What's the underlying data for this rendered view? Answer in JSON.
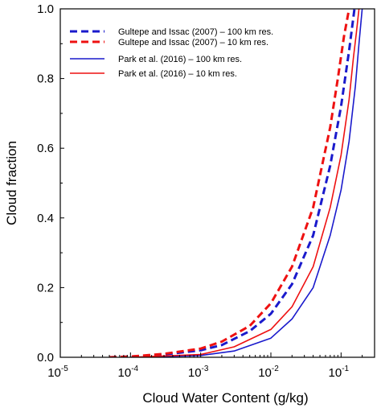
{
  "chart_data": {
    "type": "line",
    "title": "",
    "xlabel": "Cloud Water Content (g/kg)",
    "ylabel": "Cloud fraction",
    "xscale": "log",
    "xlim": [
      1e-05,
      0.3
    ],
    "ylim": [
      0.0,
      1.0
    ],
    "x_ticks": [
      {
        "value": 1e-05,
        "base": "10",
        "exp": "-5"
      },
      {
        "value": 0.0001,
        "base": "10",
        "exp": "-4"
      },
      {
        "value": 0.001,
        "base": "10",
        "exp": "-3"
      },
      {
        "value": 0.01,
        "base": "10",
        "exp": "-2"
      },
      {
        "value": 0.1,
        "base": "10",
        "exp": "-1"
      }
    ],
    "y_ticks": [
      "0.0",
      "0.2",
      "0.4",
      "0.6",
      "0.8",
      "1.0"
    ],
    "y_tick_values": [
      0.0,
      0.2,
      0.4,
      0.6,
      0.8,
      1.0
    ],
    "grid": false,
    "legend_position": "top-left",
    "series": [
      {
        "name": "Gultepe and Issac (2007) – 100 km res.",
        "color": "#1a1acc",
        "dash": "dashed",
        "x": [
          5e-05,
          0.0001,
          0.0003,
          0.001,
          0.002,
          0.005,
          0.01,
          0.02,
          0.04,
          0.07,
          0.1,
          0.13,
          0.155
        ],
        "y": [
          0.0,
          0.002,
          0.008,
          0.02,
          0.035,
          0.075,
          0.125,
          0.21,
          0.35,
          0.55,
          0.72,
          0.88,
          1.0
        ]
      },
      {
        "name": "Gultepe and Issac (2007) – 10 km res.",
        "color": "#ee1111",
        "dash": "dashed",
        "x": [
          5e-05,
          0.0001,
          0.0003,
          0.001,
          0.002,
          0.005,
          0.01,
          0.02,
          0.04,
          0.07,
          0.09,
          0.11,
          0.13
        ],
        "y": [
          0.0,
          0.002,
          0.01,
          0.025,
          0.045,
          0.09,
          0.155,
          0.26,
          0.43,
          0.66,
          0.8,
          0.92,
          1.0
        ]
      },
      {
        "name": "Park et al. (2016) – 100 km res.",
        "color": "#1a1acc",
        "dash": "solid",
        "x": [
          0.0001,
          0.001,
          0.003,
          0.01,
          0.02,
          0.04,
          0.07,
          0.1,
          0.13,
          0.16,
          0.18,
          0.2
        ],
        "y": [
          0.0,
          0.005,
          0.018,
          0.055,
          0.11,
          0.2,
          0.35,
          0.48,
          0.62,
          0.78,
          0.9,
          1.0
        ]
      },
      {
        "name": "Park et al. (2016) – 10 km res.",
        "color": "#ee1111",
        "dash": "solid",
        "x": [
          0.0001,
          0.001,
          0.003,
          0.01,
          0.02,
          0.04,
          0.07,
          0.1,
          0.13,
          0.15,
          0.165,
          0.18
        ],
        "y": [
          0.0,
          0.008,
          0.03,
          0.08,
          0.145,
          0.26,
          0.43,
          0.58,
          0.74,
          0.86,
          0.93,
          1.0
        ]
      }
    ]
  }
}
